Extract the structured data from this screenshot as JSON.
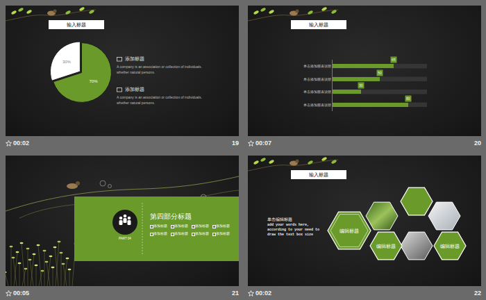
{
  "slides": [
    {
      "number": 19,
      "time": "00:02",
      "tab": "输入标题",
      "items": [
        {
          "title": "添加标题",
          "text": [
            "A company is an association or collection of individuals.",
            "whether natural persons."
          ]
        },
        {
          "title": "添加标题",
          "text": [
            "A company is an association or collection of individuals.",
            "whether natural persons."
          ]
        }
      ]
    },
    {
      "number": 20,
      "time": "00:07",
      "tab": "输入标题"
    },
    {
      "number": 21,
      "time": "00:05",
      "section_title": "第四部分标题",
      "part": "PART 04",
      "items": [
        "添加标题",
        "添加标题",
        "添加标题",
        "添加标题",
        "添加标题",
        "添加标题",
        "添加标题",
        "添加标题"
      ]
    },
    {
      "number": 22,
      "time": "00:02",
      "tab": "输入标题",
      "heading": "单击编辑标题",
      "text": [
        "add your words here,",
        "according to your need to",
        "draw the text box size"
      ],
      "hexagons": [
        "编辑标题",
        "编辑标题",
        "编辑标题"
      ]
    }
  ],
  "chart_data": [
    {
      "type": "pie",
      "values": [
        70,
        30
      ],
      "value_labels": [
        "70%",
        "30%"
      ],
      "colors": [
        "#6a9a2a",
        "#ffffff"
      ],
      "data_labels": true
    },
    {
      "type": "bar",
      "orientation": "horizontal",
      "categories": [
        "单击添加图表说明",
        "单击添加图表说明",
        "单击添加图表说明",
        "单击添加图表说明"
      ],
      "values": [
        65,
        50,
        30,
        80
      ],
      "xlim": [
        0,
        100
      ],
      "color": "#6a9a2a",
      "data_labels": true,
      "tick_labels": "y"
    }
  ]
}
